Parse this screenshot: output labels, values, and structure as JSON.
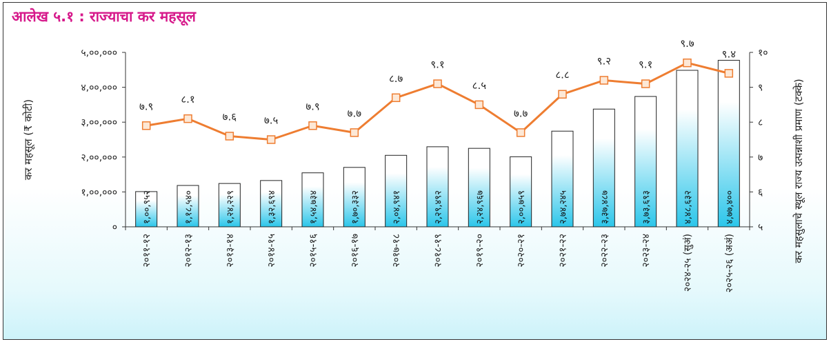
{
  "chart_data": {
    "type": "bar",
    "title": "आलेख ५.१ : राज्याचा कर महसूल",
    "ylabel": "कर महसूल (₹ कोटी)",
    "y2label": "कर महसुलाचे स्थूल राज्य उत्पन्नाशी प्रमाण (टक्के)",
    "ylim": [
      0,
      500000
    ],
    "y2lim": [
      5,
      10
    ],
    "y_tick_labels": [
      "०",
      "१,००,०००",
      "२,००,०००",
      "३,००,०००",
      "४,००,०००",
      "५,००,०००"
    ],
    "y2_tick_labels": [
      "५",
      "६",
      "७",
      "८",
      "९",
      "१०"
    ],
    "categories": [
      "२०११-१२",
      "२०१२-१३",
      "२०१३-१४",
      "२०१४-१५",
      "२०१५-१६",
      "२०१६-१७",
      "२०१७-१८",
      "२०१८-१९",
      "२०१९-२०",
      "२०२०-२१",
      "२०२१-२२",
      "२०२२-२३",
      "२०२३-२४",
      "२०२४-२५ (सुअं)",
      "२०२५-२६ (अअं)"
    ],
    "series": [
      {
        "type": "bar",
        "axis": "left",
        "values": [
          100952,
          118540,
          124229,
          132694,
          154734,
          170332,
          204941,
          229492,
          224967,
          200759,
          274245,
          337487,
          373693,
          448632,
          477400
        ],
        "labels": [
          "१,००,९५२",
          "१,१८,५४०",
          "१,२४,२२९",
          "१,३२,६९४",
          "१,५४,७३४",
          "१,७०,३३२",
          "२,०४,९४१",
          "२,२९,४९२",
          "२,२४,९६७",
          "२,००,७५९",
          "२,७४,२४५",
          "३,३७,४८७",
          "३,७३,६९३",
          "४,४८,६३२",
          "४,७७,४००"
        ]
      },
      {
        "type": "line",
        "axis": "right",
        "values": [
          7.9,
          8.1,
          7.6,
          7.5,
          7.9,
          7.7,
          8.7,
          9.1,
          8.5,
          7.7,
          8.8,
          9.2,
          9.1,
          9.7,
          9.4
        ],
        "labels": [
          "७.९",
          "८.१",
          "७.६",
          "७.५",
          "७.९",
          "७.७",
          "८.७",
          "९.१",
          "८.५",
          "७.७",
          "८.८",
          "९.२",
          "९.१",
          "९.७",
          "९.४"
        ]
      }
    ],
    "colors": {
      "line": "#ee7d31",
      "marker_fill": "#fde8d6",
      "bar_fill_top": "#ffffff",
      "bar_fill_bottom": "#2cc6ea",
      "title": "#d6188a"
    }
  }
}
